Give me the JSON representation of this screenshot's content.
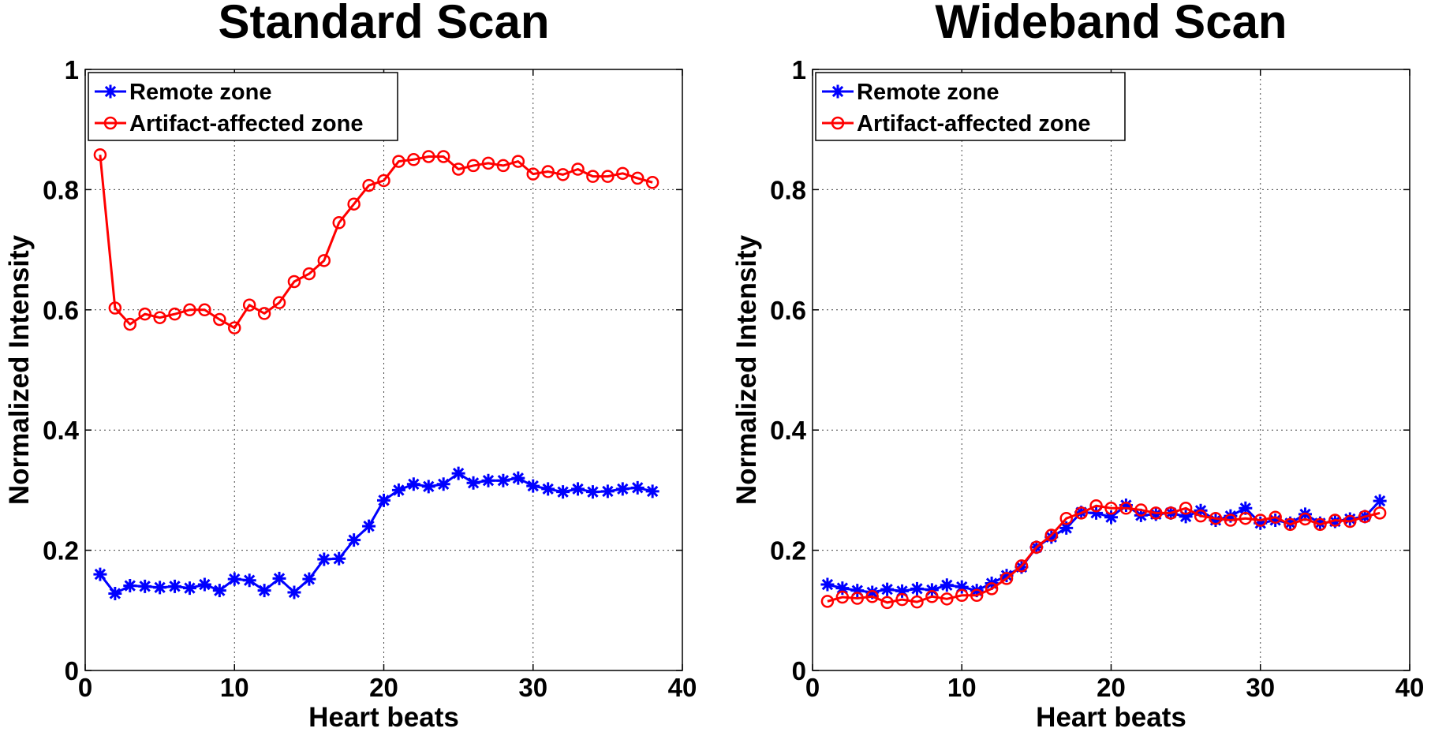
{
  "chart_data": [
    {
      "type": "line",
      "title": "Standard Scan",
      "xlabel": "Heart beats",
      "ylabel": "Normalized Intensity",
      "xlim": [
        0,
        40
      ],
      "ylim": [
        0,
        1
      ],
      "xticks": [
        0,
        10,
        20,
        30,
        40
      ],
      "yticks": [
        0,
        0.2,
        0.4,
        0.6,
        0.8,
        1
      ],
      "ytick_labels": [
        "0",
        "0.2",
        "0.4",
        "0.6",
        "0.8",
        "1"
      ],
      "grid": true,
      "legend_position": "top-left",
      "x": [
        1,
        2,
        3,
        4,
        5,
        6,
        7,
        8,
        9,
        10,
        11,
        12,
        13,
        14,
        15,
        16,
        17,
        18,
        19,
        20,
        21,
        22,
        23,
        24,
        25,
        26,
        27,
        28,
        29,
        30,
        31,
        32,
        33,
        34,
        35,
        36,
        37,
        38
      ],
      "series": [
        {
          "name": "Remote zone",
          "color": "#0000ff",
          "marker": "asterisk",
          "values": [
            0.16,
            0.128,
            0.141,
            0.14,
            0.138,
            0.14,
            0.137,
            0.143,
            0.133,
            0.152,
            0.15,
            0.133,
            0.153,
            0.13,
            0.152,
            0.185,
            0.186,
            0.217,
            0.24,
            0.283,
            0.3,
            0.31,
            0.306,
            0.31,
            0.328,
            0.312,
            0.316,
            0.316,
            0.32,
            0.307,
            0.302,
            0.297,
            0.302,
            0.297,
            0.298,
            0.302,
            0.304,
            0.298
          ]
        },
        {
          "name": "Artifact-affected zone",
          "color": "#ff0000",
          "marker": "circle",
          "values": [
            0.858,
            0.603,
            0.576,
            0.593,
            0.587,
            0.593,
            0.6,
            0.6,
            0.584,
            0.57,
            0.608,
            0.594,
            0.612,
            0.647,
            0.66,
            0.682,
            0.745,
            0.776,
            0.807,
            0.815,
            0.847,
            0.85,
            0.855,
            0.855,
            0.834,
            0.84,
            0.844,
            0.84,
            0.847,
            0.826,
            0.83,
            0.825,
            0.834,
            0.822,
            0.822,
            0.827,
            0.819,
            0.812
          ]
        }
      ]
    },
    {
      "type": "line",
      "title": "Wideband Scan",
      "xlabel": "Heart beats",
      "ylabel": "Normalized Intensity",
      "xlim": [
        0,
        40
      ],
      "ylim": [
        0,
        1
      ],
      "xticks": [
        0,
        10,
        20,
        30,
        40
      ],
      "yticks": [
        0,
        0.2,
        0.4,
        0.6,
        0.8,
        1
      ],
      "ytick_labels": [
        "0",
        "0.2",
        "0.4",
        "0.6",
        "0.8",
        "1"
      ],
      "grid": true,
      "legend_position": "top-left",
      "x": [
        1,
        2,
        3,
        4,
        5,
        6,
        7,
        8,
        9,
        10,
        11,
        12,
        13,
        14,
        15,
        16,
        17,
        18,
        19,
        20,
        21,
        22,
        23,
        24,
        25,
        26,
        27,
        28,
        29,
        30,
        31,
        32,
        33,
        34,
        35,
        36,
        37,
        38
      ],
      "series": [
        {
          "name": "Remote zone",
          "color": "#0000ff",
          "marker": "asterisk",
          "values": [
            0.143,
            0.137,
            0.133,
            0.13,
            0.135,
            0.132,
            0.136,
            0.134,
            0.142,
            0.139,
            0.133,
            0.145,
            0.158,
            0.172,
            0.205,
            0.222,
            0.237,
            0.263,
            0.262,
            0.255,
            0.275,
            0.258,
            0.26,
            0.262,
            0.256,
            0.266,
            0.25,
            0.257,
            0.27,
            0.245,
            0.25,
            0.245,
            0.26,
            0.245,
            0.248,
            0.252,
            0.256,
            0.282
          ]
        },
        {
          "name": "Artifact-affected zone",
          "color": "#ff0000",
          "marker": "circle",
          "values": [
            0.115,
            0.122,
            0.12,
            0.123,
            0.113,
            0.118,
            0.114,
            0.123,
            0.119,
            0.125,
            0.125,
            0.136,
            0.153,
            0.174,
            0.205,
            0.225,
            0.253,
            0.262,
            0.274,
            0.27,
            0.27,
            0.267,
            0.262,
            0.262,
            0.27,
            0.257,
            0.253,
            0.25,
            0.253,
            0.25,
            0.255,
            0.243,
            0.252,
            0.243,
            0.25,
            0.248,
            0.256,
            0.262
          ]
        }
      ]
    }
  ]
}
